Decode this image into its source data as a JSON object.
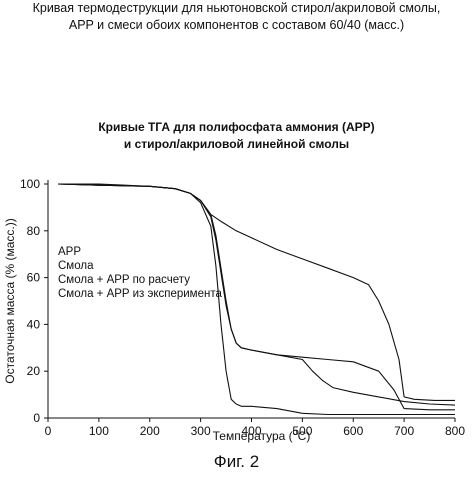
{
  "caption": {
    "line1": "Кривая термодеструкции для ньютоновской стирол/акриловой смолы,",
    "line2": "APP и смеси обоих компонентов с составом 60/40 (масс.)"
  },
  "figure_label": "Фиг. 2",
  "chart_data": {
    "type": "line",
    "title_line1": "Кривые ТГА для полифосфата аммония (APP)",
    "title_line2": "и стирол/акриловой линейной смолы",
    "xlabel_prefix": "Температура (",
    "xlabel_sup": "o",
    "xlabel_suffix": "C)",
    "ylabel": "Остаточная масса (% (масс.))",
    "xlim": [
      0,
      800
    ],
    "ylim": [
      0,
      100
    ],
    "xticks": [
      0,
      100,
      200,
      300,
      400,
      500,
      600,
      700,
      800
    ],
    "yticks": [
      0,
      20,
      40,
      60,
      80,
      100
    ],
    "grid": false,
    "legend_position": "left-middle",
    "legend": [
      "APP",
      "Смола",
      "Смола + APP по расчету",
      "Смола + APP из эксперимента"
    ],
    "series": [
      {
        "name": "APP",
        "x": [
          20,
          100,
          200,
          250,
          280,
          300,
          310,
          320,
          340,
          370,
          400,
          450,
          500,
          550,
          600,
          630,
          650,
          670,
          690,
          700,
          720,
          760,
          800
        ],
        "y": [
          100,
          100,
          99,
          98,
          96,
          93,
          90,
          87,
          84,
          80,
          77,
          72,
          68,
          64,
          60,
          57,
          50,
          40,
          25,
          9,
          8,
          7.5,
          7.5
        ]
      },
      {
        "name": "Смола",
        "x": [
          20,
          100,
          200,
          250,
          280,
          300,
          320,
          330,
          340,
          350,
          360,
          370,
          380,
          400,
          450,
          500,
          550,
          600,
          700,
          800
        ],
        "y": [
          100,
          99.5,
          99,
          98,
          96,
          92,
          82,
          65,
          40,
          20,
          8,
          6,
          5,
          5,
          4,
          2,
          1.5,
          1.5,
          1.5,
          1.5
        ]
      },
      {
        "name": "Смола + APP по расчету",
        "x": [
          20,
          100,
          200,
          250,
          280,
          300,
          320,
          330,
          340,
          350,
          360,
          370,
          380,
          400,
          450,
          500,
          550,
          600,
          650,
          680,
          700,
          750,
          800
        ],
        "y": [
          100,
          99.5,
          99,
          98,
          96,
          93,
          86,
          76,
          62,
          48,
          38,
          32,
          30,
          29,
          27,
          26,
          25,
          24,
          20,
          12,
          4,
          3.5,
          3.5
        ]
      },
      {
        "name": "Смола + APP из эксперимента",
        "x": [
          20,
          100,
          200,
          250,
          280,
          300,
          320,
          330,
          340,
          350,
          360,
          370,
          380,
          400,
          450,
          500,
          520,
          540,
          560,
          600,
          650,
          700,
          750,
          800
        ],
        "y": [
          100,
          99.5,
          99,
          98,
          96,
          93,
          87,
          78,
          64,
          50,
          38,
          32,
          30,
          29,
          27,
          25,
          20,
          16,
          13,
          11,
          9,
          7,
          6,
          5.5
        ]
      }
    ]
  }
}
